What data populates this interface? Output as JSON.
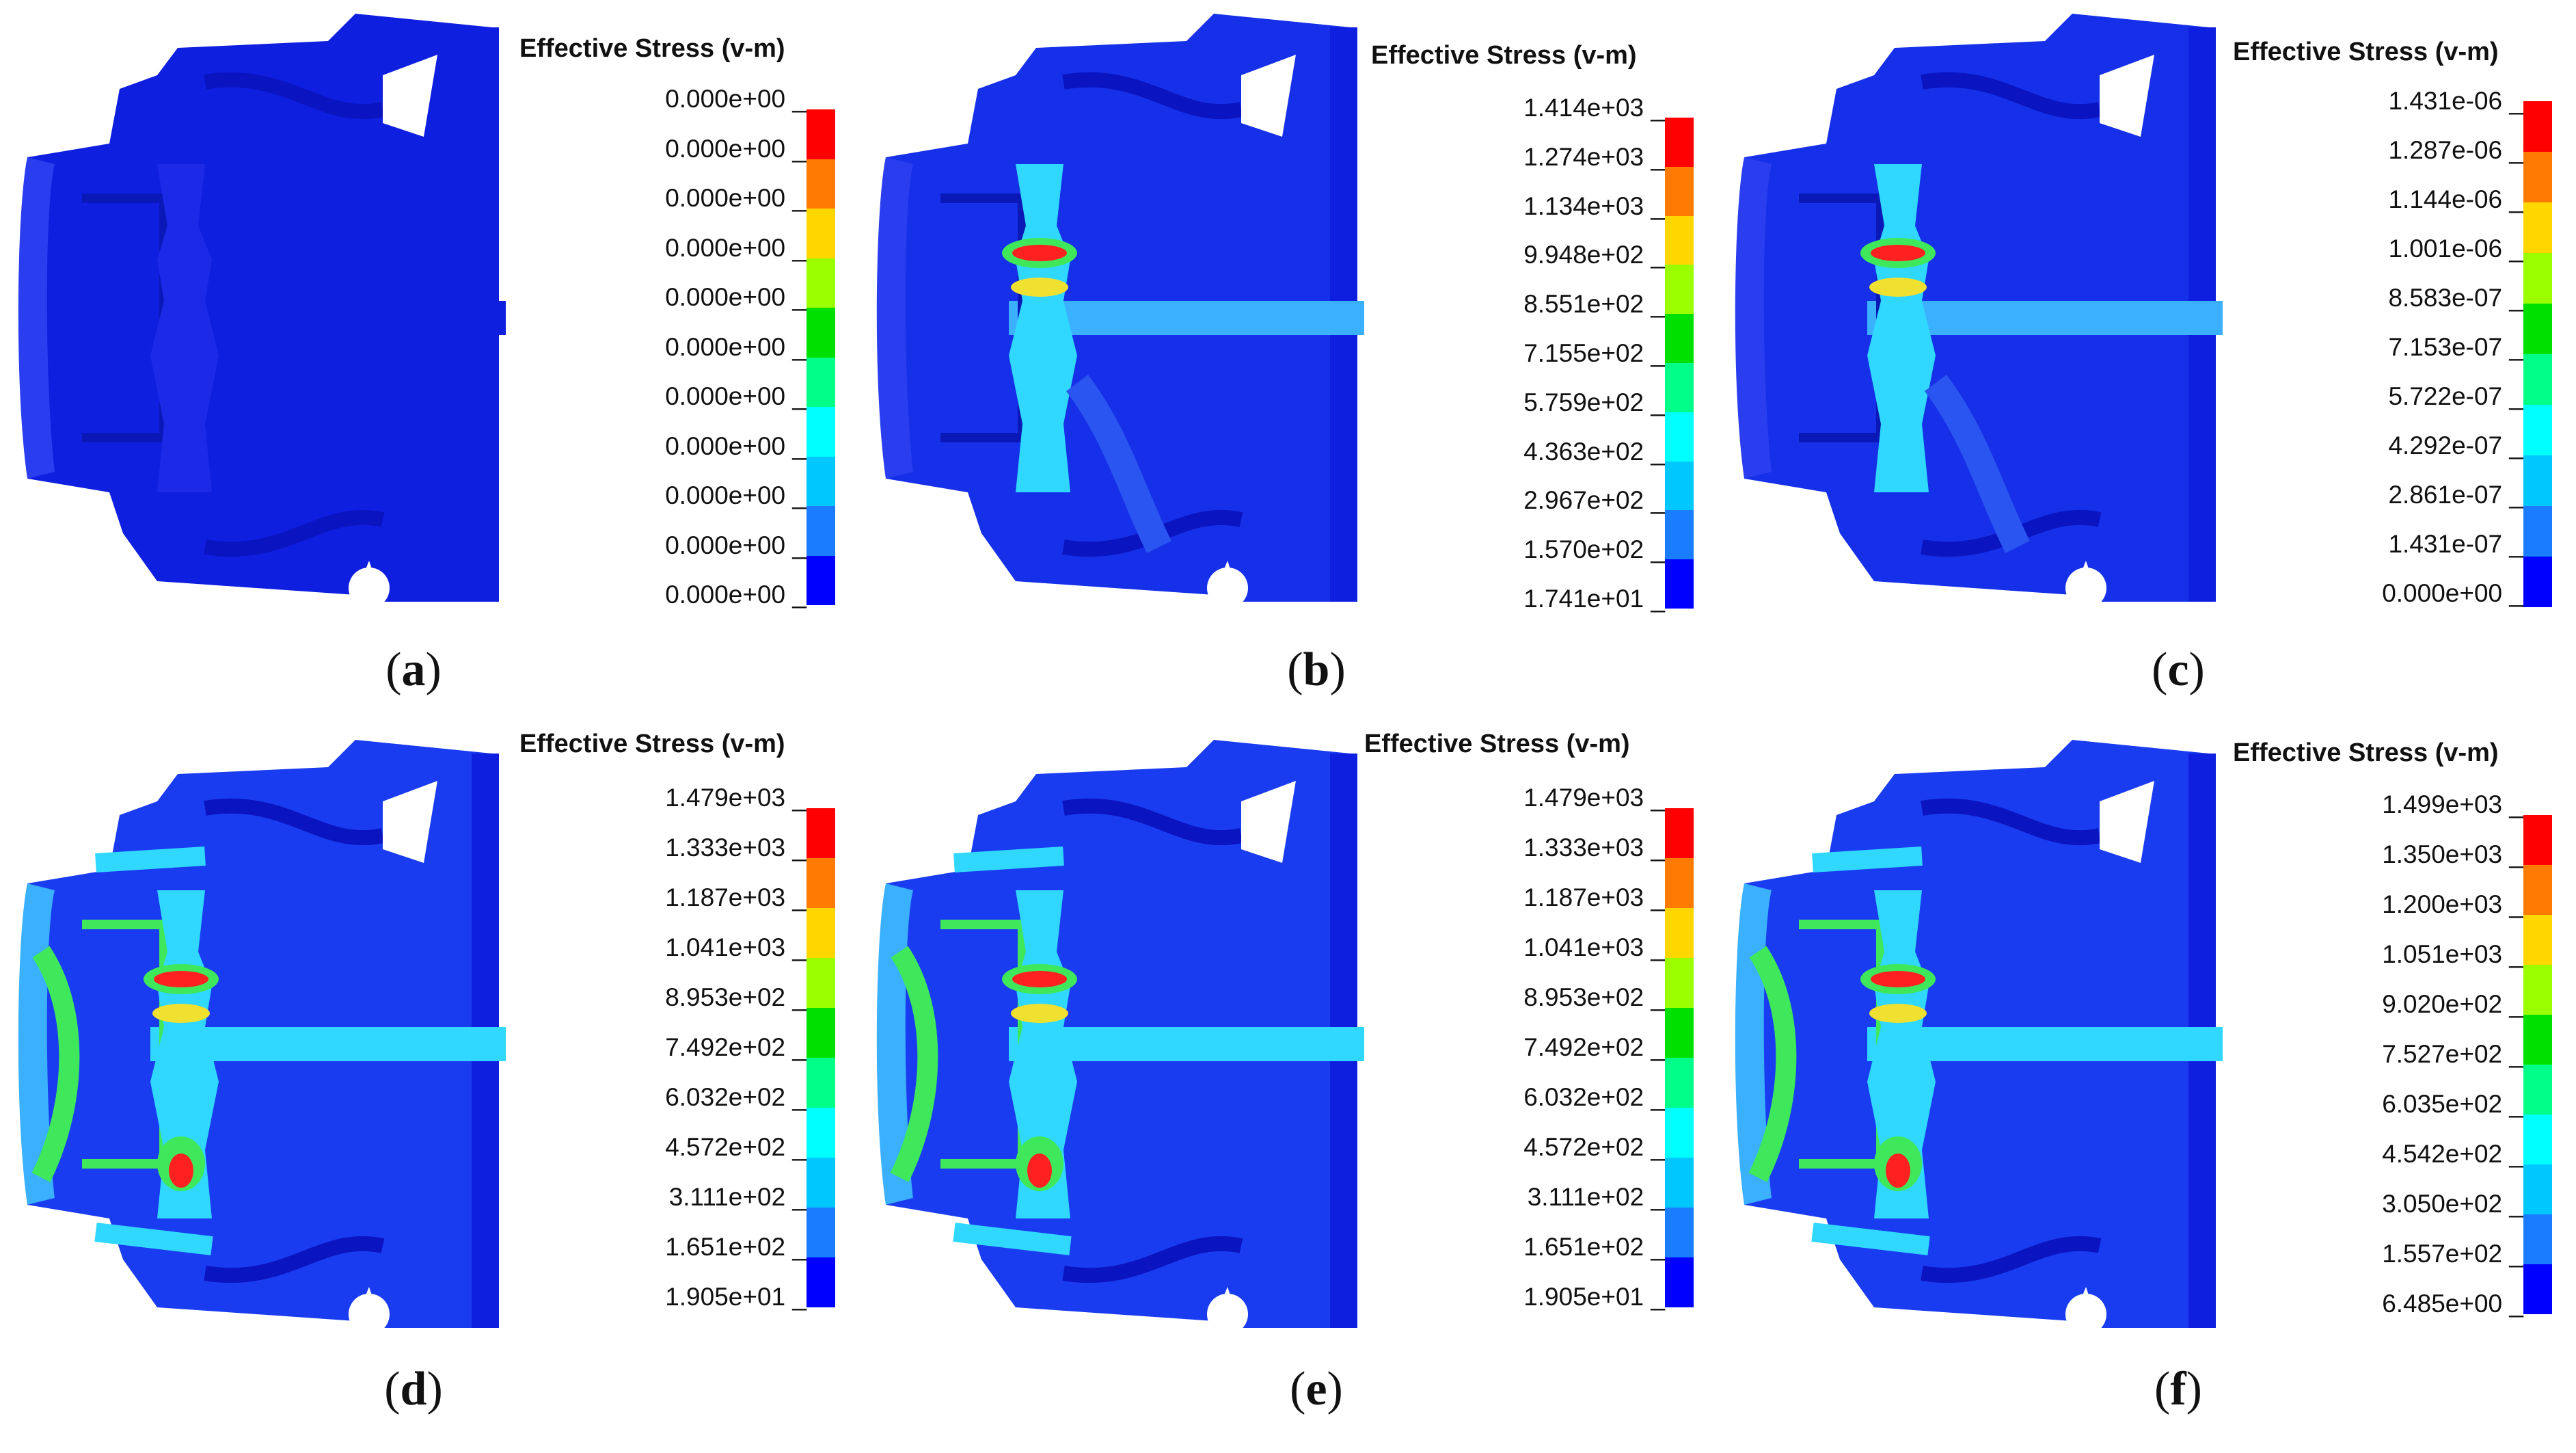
{
  "panels": [
    {
      "id": "a",
      "caption_letter": "a",
      "title": "Effective Stress (v-m)",
      "ticks": [
        "0.000e+00",
        "0.000e+00",
        "0.000e+00",
        "0.000e+00",
        "0.000e+00",
        "0.000e+00",
        "0.000e+00",
        "0.000e+00",
        "0.000e+00",
        "0.000e+00",
        "0.000e+00"
      ]
    },
    {
      "id": "b",
      "caption_letter": "b",
      "title": "Effective Stress (v-m)",
      "ticks": [
        "1.414e+03",
        "1.274e+03",
        "1.134e+03",
        "9.948e+02",
        "8.551e+02",
        "7.155e+02",
        "5.759e+02",
        "4.363e+02",
        "2.967e+02",
        "1.570e+02",
        "1.741e+01"
      ]
    },
    {
      "id": "c",
      "caption_letter": "c",
      "title": "Effective Stress (v-m)",
      "ticks": [
        "1.431e-06",
        "1.287e-06",
        "1.144e-06",
        "1.001e-06",
        "8.583e-07",
        "7.153e-07",
        "5.722e-07",
        "4.292e-07",
        "2.861e-07",
        "1.431e-07",
        "0.000e+00"
      ]
    },
    {
      "id": "d",
      "caption_letter": "d",
      "title": "Effective Stress (v-m)",
      "ticks": [
        "1.479e+03",
        "1.333e+03",
        "1.187e+03",
        "1.041e+03",
        "8.953e+02",
        "7.492e+02",
        "6.032e+02",
        "4.572e+02",
        "3.111e+02",
        "1.651e+02",
        "1.905e+01"
      ]
    },
    {
      "id": "e",
      "caption_letter": "e",
      "title": "Effective Stress (v-m)",
      "ticks": [
        "1.479e+03",
        "1.333e+03",
        "1.187e+03",
        "1.041e+03",
        "8.953e+02",
        "7.492e+02",
        "6.032e+02",
        "4.572e+02",
        "3.111e+02",
        "1.651e+02",
        "1.905e+01"
      ]
    },
    {
      "id": "f",
      "caption_letter": "f",
      "title": "Effective Stress (v-m)",
      "ticks": [
        "1.499e+03",
        "1.350e+03",
        "1.200e+03",
        "1.051e+03",
        "9.020e+02",
        "7.527e+02",
        "6.035e+02",
        "4.542e+02",
        "3.050e+02",
        "1.557e+02",
        "6.485e+00"
      ]
    }
  ],
  "colorbar": [
    "#ff0000",
    "#ff7a00",
    "#ffd700",
    "#9cff00",
    "#00e000",
    "#00ff88",
    "#00ffff",
    "#00c8ff",
    "#1a7dff",
    "#0000ff"
  ],
  "colors": {
    "structure_blue": "#0f1fe0",
    "mid_blue": "#2a55f0",
    "light_blue": "#3ab0ff",
    "cyan": "#30d8ff",
    "green": "#3ee85a",
    "yellow": "#f0e030",
    "red": "#ff2020"
  }
}
